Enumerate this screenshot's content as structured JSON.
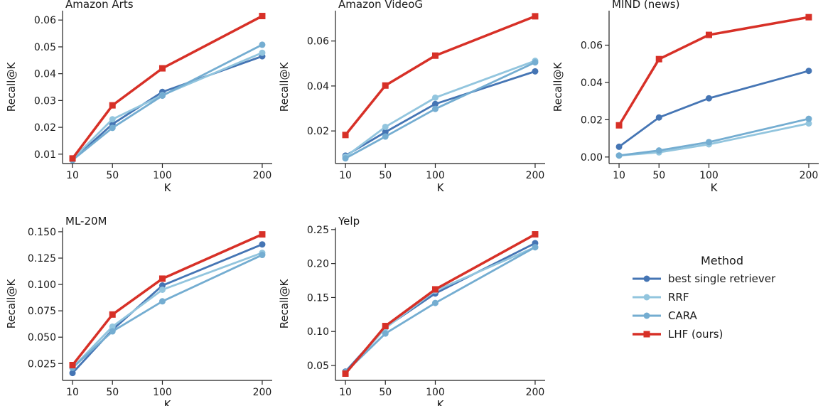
{
  "chart_data": [
    {
      "type": "line",
      "title": "Amazon Arts",
      "xlabel": "K",
      "ylabel": "Recall@K",
      "x": [
        10,
        50,
        100,
        200
      ],
      "x_ticks": [
        "10",
        "50",
        "100",
        "200"
      ],
      "xlim": [
        0,
        210
      ],
      "ylim": [
        0.0065,
        0.0635
      ],
      "y_ticks": [
        "0.01",
        "0.02",
        "0.03",
        "0.04",
        "0.05",
        "0.06"
      ],
      "y_tick_values": [
        0.01,
        0.02,
        0.03,
        0.04,
        0.05,
        0.06
      ],
      "series": [
        {
          "name": "best single retriever",
          "values": [
            0.0078,
            0.0212,
            0.0332,
            0.0465
          ]
        },
        {
          "name": "RRF",
          "values": [
            0.0082,
            0.023,
            0.032,
            0.0478
          ]
        },
        {
          "name": "CARA",
          "values": [
            0.0078,
            0.0198,
            0.0318,
            0.0508
          ]
        },
        {
          "name": "LHF (ours)",
          "values": [
            0.0084,
            0.0282,
            0.042,
            0.0615
          ]
        }
      ]
    },
    {
      "type": "line",
      "title": "Amazon VideoG",
      "xlabel": "K",
      "ylabel": "Recall@K",
      "x": [
        10,
        50,
        100,
        200
      ],
      "x_ticks": [
        "10",
        "50",
        "100",
        "200"
      ],
      "xlim": [
        0,
        210
      ],
      "ylim": [
        0.0055,
        0.0735
      ],
      "y_ticks": [
        "0.02",
        "0.04",
        "0.06"
      ],
      "y_tick_values": [
        0.02,
        0.04,
        0.06
      ],
      "series": [
        {
          "name": "best single retriever",
          "values": [
            0.009,
            0.0195,
            0.032,
            0.0465
          ]
        },
        {
          "name": "RRF",
          "values": [
            0.0085,
            0.0218,
            0.0348,
            0.0512
          ]
        },
        {
          "name": "CARA",
          "values": [
            0.0078,
            0.0175,
            0.0298,
            0.0505
          ]
        },
        {
          "name": "LHF (ours)",
          "values": [
            0.0182,
            0.0402,
            0.0535,
            0.071
          ]
        }
      ]
    },
    {
      "type": "line",
      "title": "MIND (news)",
      "xlabel": "K",
      "ylabel": "Recall@K",
      "x": [
        10,
        50,
        100,
        200
      ],
      "x_ticks": [
        "10",
        "50",
        "100",
        "200"
      ],
      "xlim": [
        0,
        210
      ],
      "ylim": [
        -0.0035,
        0.0785
      ],
      "y_ticks": [
        "0.00",
        "0.02",
        "0.04",
        "0.06"
      ],
      "y_tick_values": [
        0.0,
        0.02,
        0.04,
        0.06
      ],
      "series": [
        {
          "name": "best single retriever",
          "values": [
            0.0055,
            0.0212,
            0.0315,
            0.0462
          ]
        },
        {
          "name": "RRF",
          "values": [
            0.0008,
            0.0025,
            0.0068,
            0.018
          ]
        },
        {
          "name": "CARA",
          "values": [
            0.0008,
            0.0035,
            0.008,
            0.0205
          ]
        },
        {
          "name": "LHF (ours)",
          "values": [
            0.017,
            0.0525,
            0.0655,
            0.075
          ]
        }
      ]
    },
    {
      "type": "line",
      "title": "ML-20M",
      "xlabel": "K",
      "ylabel": "Recall@K",
      "x": [
        10,
        50,
        100,
        200
      ],
      "x_ticks": [
        "10",
        "50",
        "100",
        "200"
      ],
      "xlim": [
        0,
        210
      ],
      "ylim": [
        0.009,
        0.154
      ],
      "y_ticks": [
        "0.025",
        "0.050",
        "0.075",
        "0.100",
        "0.125",
        "0.150"
      ],
      "y_tick_values": [
        0.025,
        0.05,
        0.075,
        0.1,
        0.125,
        0.15
      ],
      "series": [
        {
          "name": "best single retriever",
          "values": [
            0.016,
            0.057,
            0.099,
            0.138
          ]
        },
        {
          "name": "RRF",
          "values": [
            0.021,
            0.06,
            0.095,
            0.13
          ]
        },
        {
          "name": "CARA",
          "values": [
            0.021,
            0.0555,
            0.084,
            0.128
          ]
        },
        {
          "name": "LHF (ours)",
          "values": [
            0.0235,
            0.0715,
            0.1055,
            0.1475
          ]
        }
      ]
    },
    {
      "type": "line",
      "title": "Yelp",
      "xlabel": "K",
      "ylabel": "Recall@K",
      "x": [
        10,
        50,
        100,
        200
      ],
      "x_ticks": [
        "10",
        "50",
        "100",
        "200"
      ],
      "xlim": [
        0,
        210
      ],
      "ylim": [
        0.028,
        0.253
      ],
      "y_ticks": [
        "0.05",
        "0.10",
        "0.15",
        "0.20",
        "0.25"
      ],
      "y_tick_values": [
        0.05,
        0.1,
        0.15,
        0.2,
        0.25
      ],
      "series": [
        {
          "name": "best single retriever",
          "values": [
            0.041,
            0.106,
            0.156,
            0.23
          ]
        },
        {
          "name": "RRF",
          "values": [
            0.038,
            0.105,
            0.16,
            0.224
          ]
        },
        {
          "name": "CARA",
          "values": [
            0.04,
            0.097,
            0.142,
            0.224
          ]
        },
        {
          "name": "LHF (ours)",
          "values": [
            0.038,
            0.108,
            0.162,
            0.243
          ]
        }
      ]
    }
  ],
  "legend": {
    "title": "Method",
    "placement": "bottom-right",
    "entries": [
      {
        "name": "best single retriever",
        "color": "#4575b4",
        "marker": "circle"
      },
      {
        "name": "RRF",
        "color": "#92c5de",
        "marker": "circle"
      },
      {
        "name": "CARA",
        "color": "#74add1",
        "marker": "circle"
      },
      {
        "name": "LHF (ours)",
        "color": "#d73027",
        "marker": "square"
      }
    ]
  },
  "series_styles": [
    {
      "name": "best single retriever",
      "color": "#4575b4",
      "marker": "circle"
    },
    {
      "name": "RRF",
      "color": "#92c5de",
      "marker": "circle"
    },
    {
      "name": "CARA",
      "color": "#74add1",
      "marker": "circle"
    },
    {
      "name": "LHF (ours)",
      "color": "#d73027",
      "marker": "square"
    }
  ]
}
